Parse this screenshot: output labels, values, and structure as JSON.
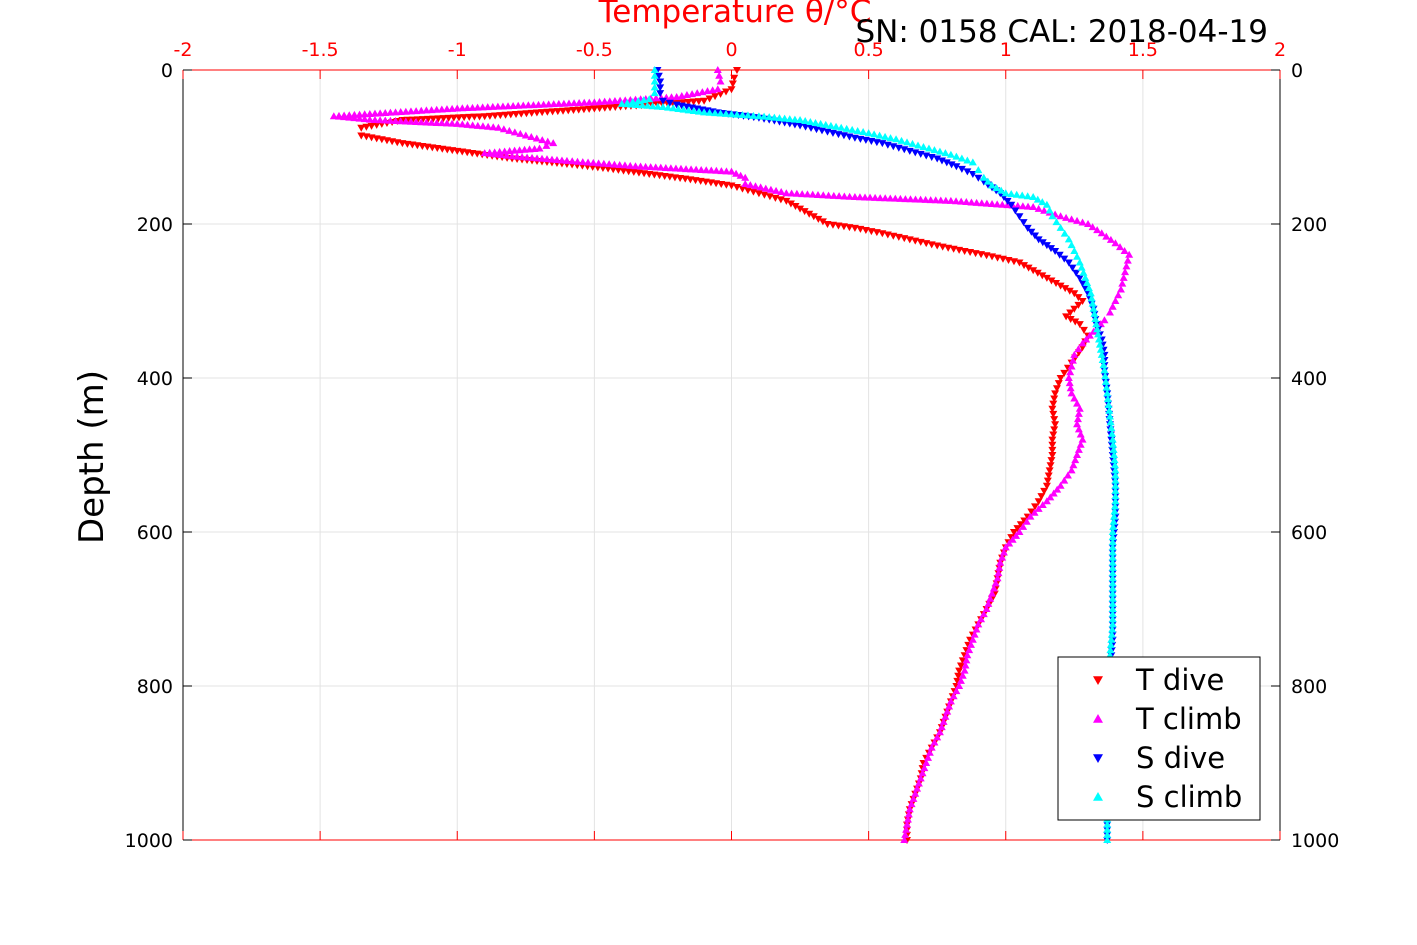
{
  "chart_data": {
    "type": "scatter",
    "title": "Temperature θ/°C",
    "annotation": "SN: 0158  CAL: 2018-04-19",
    "xlabel": "Temperature θ/°C",
    "ylabel": "Depth (m)",
    "xlim": [
      -2,
      2
    ],
    "ylim": [
      0,
      1000
    ],
    "y_reversed": true,
    "x_ticks": [
      "-2",
      "-1.5",
      "-1",
      "-0.5",
      "0",
      "0.5",
      "1",
      "1.5",
      "2"
    ],
    "y_ticks": [
      "0",
      "200",
      "400",
      "600",
      "800",
      "1000"
    ],
    "grid": true,
    "legend_position": "bottom-right",
    "series": [
      {
        "name": "T dive",
        "color": "#ff0000",
        "marker": "triangle-down",
        "points": [
          [
            0.02,
            0
          ],
          [
            0.01,
            10
          ],
          [
            0.0,
            25
          ],
          [
            -0.1,
            40
          ],
          [
            -0.5,
            50
          ],
          [
            -0.9,
            60
          ],
          [
            -1.2,
            65
          ],
          [
            -1.35,
            75
          ],
          [
            -1.35,
            85
          ],
          [
            -1.2,
            95
          ],
          [
            -1.0,
            105
          ],
          [
            -0.8,
            115
          ],
          [
            -0.6,
            122
          ],
          [
            -0.45,
            128
          ],
          [
            -0.3,
            135
          ],
          [
            -0.15,
            142
          ],
          [
            0.0,
            150
          ],
          [
            0.1,
            160
          ],
          [
            0.2,
            170
          ],
          [
            0.25,
            180
          ],
          [
            0.3,
            190
          ],
          [
            0.35,
            200
          ],
          [
            0.45,
            205
          ],
          [
            0.55,
            212
          ],
          [
            0.65,
            220
          ],
          [
            0.75,
            228
          ],
          [
            0.85,
            235
          ],
          [
            0.95,
            242
          ],
          [
            1.05,
            250
          ],
          [
            1.1,
            260
          ],
          [
            1.15,
            270
          ],
          [
            1.2,
            280
          ],
          [
            1.25,
            290
          ],
          [
            1.28,
            300
          ],
          [
            1.25,
            310
          ],
          [
            1.22,
            320
          ],
          [
            1.27,
            330
          ],
          [
            1.3,
            345
          ],
          [
            1.28,
            360
          ],
          [
            1.24,
            380
          ],
          [
            1.2,
            400
          ],
          [
            1.18,
            420
          ],
          [
            1.17,
            440
          ],
          [
            1.18,
            460
          ],
          [
            1.17,
            480
          ],
          [
            1.17,
            500
          ],
          [
            1.16,
            520
          ],
          [
            1.15,
            540
          ],
          [
            1.12,
            560
          ],
          [
            1.08,
            580
          ],
          [
            1.03,
            600
          ],
          [
            1.0,
            620
          ],
          [
            0.98,
            640
          ],
          [
            0.97,
            660
          ],
          [
            0.96,
            680
          ],
          [
            0.93,
            700
          ],
          [
            0.9,
            720
          ],
          [
            0.87,
            740
          ],
          [
            0.85,
            760
          ],
          [
            0.83,
            780
          ],
          [
            0.82,
            800
          ],
          [
            0.8,
            820
          ],
          [
            0.78,
            840
          ],
          [
            0.76,
            860
          ],
          [
            0.73,
            880
          ],
          [
            0.7,
            900
          ],
          [
            0.69,
            920
          ],
          [
            0.67,
            940
          ],
          [
            0.65,
            960
          ],
          [
            0.64,
            980
          ],
          [
            0.64,
            1000
          ]
        ]
      },
      {
        "name": "T climb",
        "color": "#ff00ff",
        "marker": "triangle-up",
        "points": [
          [
            -0.05,
            0
          ],
          [
            -0.04,
            15
          ],
          [
            -0.05,
            25
          ],
          [
            -0.2,
            35
          ],
          [
            -0.5,
            42
          ],
          [
            -1.0,
            50
          ],
          [
            -1.45,
            60
          ],
          [
            -1.3,
            65
          ],
          [
            -1.0,
            70
          ],
          [
            -0.85,
            75
          ],
          [
            -0.75,
            85
          ],
          [
            -0.65,
            95
          ],
          [
            -0.7,
            102
          ],
          [
            -0.9,
            108
          ],
          [
            -0.8,
            112
          ],
          [
            -0.6,
            118
          ],
          [
            -0.35,
            125
          ],
          [
            0.0,
            132
          ],
          [
            0.05,
            140
          ],
          [
            0.05,
            148
          ],
          [
            0.2,
            160
          ],
          [
            0.45,
            165
          ],
          [
            0.8,
            170
          ],
          [
            1.1,
            178
          ],
          [
            1.2,
            190
          ],
          [
            1.3,
            200
          ],
          [
            1.35,
            212
          ],
          [
            1.4,
            225
          ],
          [
            1.45,
            240
          ],
          [
            1.44,
            255
          ],
          [
            1.43,
            270
          ],
          [
            1.42,
            285
          ],
          [
            1.4,
            300
          ],
          [
            1.38,
            315
          ],
          [
            1.36,
            325
          ],
          [
            1.32,
            340
          ],
          [
            1.28,
            355
          ],
          [
            1.25,
            370
          ],
          [
            1.24,
            385
          ],
          [
            1.23,
            400
          ],
          [
            1.24,
            420
          ],
          [
            1.27,
            440
          ],
          [
            1.26,
            460
          ],
          [
            1.28,
            480
          ],
          [
            1.26,
            500
          ],
          [
            1.24,
            520
          ],
          [
            1.2,
            540
          ],
          [
            1.15,
            560
          ],
          [
            1.09,
            580
          ],
          [
            1.05,
            600
          ],
          [
            1.0,
            620
          ],
          [
            0.98,
            640
          ],
          [
            0.97,
            660
          ],
          [
            0.95,
            680
          ],
          [
            0.93,
            700
          ],
          [
            0.9,
            720
          ],
          [
            0.88,
            740
          ],
          [
            0.86,
            760
          ],
          [
            0.85,
            780
          ],
          [
            0.83,
            800
          ],
          [
            0.8,
            820
          ],
          [
            0.78,
            840
          ],
          [
            0.76,
            860
          ],
          [
            0.73,
            880
          ],
          [
            0.71,
            900
          ],
          [
            0.69,
            920
          ],
          [
            0.67,
            940
          ],
          [
            0.65,
            960
          ],
          [
            0.64,
            980
          ],
          [
            0.63,
            1000
          ]
        ]
      },
      {
        "name": "S dive",
        "color": "#0000ff",
        "marker": "triangle-down",
        "points": [
          [
            -0.27,
            0
          ],
          [
            -0.26,
            15
          ],
          [
            -0.26,
            30
          ],
          [
            -0.25,
            40
          ],
          [
            -0.2,
            45
          ],
          [
            -0.05,
            55
          ],
          [
            0.1,
            62
          ],
          [
            0.25,
            72
          ],
          [
            0.35,
            80
          ],
          [
            0.45,
            88
          ],
          [
            0.55,
            95
          ],
          [
            0.65,
            105
          ],
          [
            0.75,
            115
          ],
          [
            0.82,
            125
          ],
          [
            0.88,
            135
          ],
          [
            0.92,
            145
          ],
          [
            0.98,
            160
          ],
          [
            1.02,
            175
          ],
          [
            1.05,
            190
          ],
          [
            1.08,
            205
          ],
          [
            1.12,
            220
          ],
          [
            1.18,
            235
          ],
          [
            1.23,
            250
          ],
          [
            1.27,
            270
          ],
          [
            1.3,
            290
          ],
          [
            1.32,
            310
          ],
          [
            1.33,
            330
          ],
          [
            1.35,
            350
          ],
          [
            1.36,
            370
          ],
          [
            1.36,
            390
          ],
          [
            1.37,
            420
          ],
          [
            1.38,
            460
          ],
          [
            1.39,
            500
          ],
          [
            1.4,
            540
          ],
          [
            1.4,
            580
          ],
          [
            1.39,
            620
          ],
          [
            1.39,
            660
          ],
          [
            1.39,
            700
          ],
          [
            1.39,
            740
          ],
          [
            1.38,
            780
          ],
          [
            1.38,
            820
          ],
          [
            1.38,
            860
          ],
          [
            1.38,
            900
          ],
          [
            1.37,
            940
          ],
          [
            1.37,
            980
          ],
          [
            1.37,
            1000
          ]
        ]
      },
      {
        "name": "S climb",
        "color": "#00ffff",
        "marker": "triangle-up",
        "points": [
          [
            -0.28,
            0
          ],
          [
            -0.28,
            15
          ],
          [
            -0.28,
            30
          ],
          [
            -0.3,
            38
          ],
          [
            -0.4,
            44
          ],
          [
            -0.25,
            48
          ],
          [
            -0.1,
            55
          ],
          [
            0.1,
            60
          ],
          [
            0.25,
            65
          ],
          [
            0.4,
            75
          ],
          [
            0.5,
            82
          ],
          [
            0.6,
            90
          ],
          [
            0.7,
            100
          ],
          [
            0.8,
            110
          ],
          [
            0.88,
            120
          ],
          [
            0.9,
            130
          ],
          [
            0.92,
            140
          ],
          [
            0.95,
            150
          ],
          [
            1.0,
            160
          ],
          [
            1.1,
            165
          ],
          [
            1.15,
            175
          ],
          [
            1.17,
            190
          ],
          [
            1.2,
            205
          ],
          [
            1.23,
            220
          ],
          [
            1.25,
            235
          ],
          [
            1.27,
            250
          ],
          [
            1.29,
            270
          ],
          [
            1.31,
            290
          ],
          [
            1.32,
            310
          ],
          [
            1.33,
            330
          ],
          [
            1.34,
            350
          ],
          [
            1.35,
            370
          ],
          [
            1.36,
            390
          ],
          [
            1.37,
            420
          ],
          [
            1.38,
            450
          ],
          [
            1.39,
            480
          ],
          [
            1.4,
            520
          ],
          [
            1.4,
            560
          ],
          [
            1.39,
            600
          ],
          [
            1.39,
            640
          ],
          [
            1.39,
            680
          ],
          [
            1.39,
            720
          ],
          [
            1.38,
            760
          ],
          [
            1.38,
            800
          ],
          [
            1.38,
            840
          ],
          [
            1.38,
            880
          ],
          [
            1.37,
            920
          ],
          [
            1.37,
            960
          ],
          [
            1.37,
            1000
          ]
        ]
      }
    ]
  }
}
